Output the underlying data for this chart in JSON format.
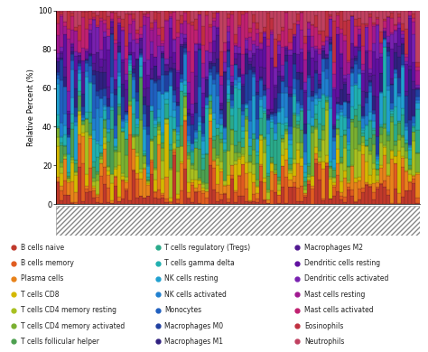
{
  "cell_types": [
    "B cells naive",
    "B cells memory",
    "Plasma cells",
    "T cells CD8",
    "T cells CD4 memory resting",
    "T cells CD4 memory activated",
    "T cells follicular helper",
    "T cells regulatory (Tregs)",
    "T cells gamma delta",
    "NK cells resting",
    "NK cells activated",
    "Monocytes",
    "Macrophages M0",
    "Macrophages M1",
    "Macrophages M2",
    "Dendritic cells resting",
    "Dendritic cells activated",
    "Mast cells resting",
    "Mast cells activated",
    "Eosinophils",
    "Neutrophils"
  ],
  "colors": [
    "#c0392b",
    "#e05c20",
    "#e8821a",
    "#d4b800",
    "#a8c020",
    "#7ab030",
    "#4da050",
    "#2aaa8a",
    "#20b0b0",
    "#20a0d0",
    "#2080d0",
    "#2060c0",
    "#2040a0",
    "#302080",
    "#501890",
    "#6010a0",
    "#7820b0",
    "#a01890",
    "#c02070",
    "#c03040",
    "#c04060"
  ],
  "n_samples": 100,
  "ylabel": "Relative Percent (%)",
  "ylim": [
    0,
    100
  ],
  "yticks": [
    0,
    20,
    40,
    60,
    80,
    100
  ],
  "bar_edge_color": "#111111",
  "bar_linewidth": 0.1,
  "hatch_color": "#888888",
  "background_color": "#ffffff",
  "legend_font_size": 5.5,
  "seed": 12345
}
